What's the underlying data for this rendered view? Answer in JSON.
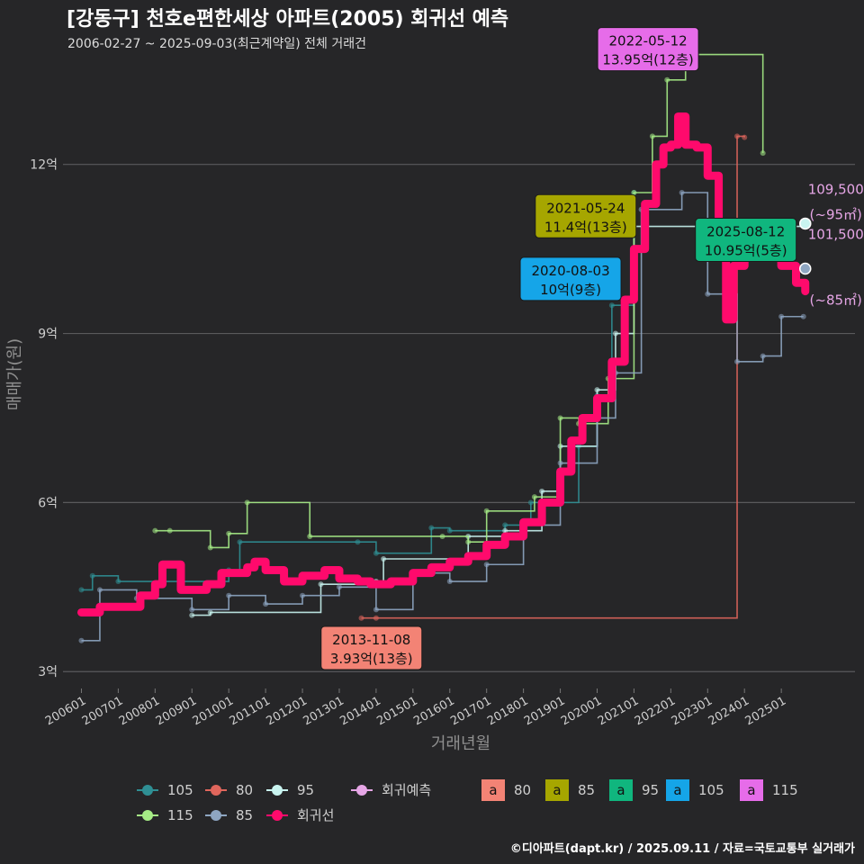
{
  "title": "[강동구] 천호e편한세상 아파트(2005) 회귀선 예측",
  "subtitle": "2006-02-27 ~ 2025-09-03(최근계약일) 전체 거래건",
  "footer": "©디아파트(dapt.kr) / 2025.09.11 / 자료=국토교통부 실거래가",
  "colors": {
    "background": "#262628",
    "regression": "#ff0a6c",
    "s105": "#2f8f94",
    "s80": "#e0665c",
    "s95": "#c9f4f0",
    "s115": "#a6ec86",
    "s85": "#8ea6c2",
    "pred": "#e6a6e6"
  },
  "chart_data": {
    "type": "line",
    "title": "[강동구] 천호e편한세상 아파트(2005) 회귀선 예측",
    "xlabel": "거래년월",
    "ylabel": "매매가(원)",
    "xlim": [
      2005.5,
      2027.0
    ],
    "ylim": [
      2.7,
      13.8
    ],
    "x_ticks": [
      {
        "x": 2006.0,
        "label": "200601"
      },
      {
        "x": 2007.0,
        "label": "200701"
      },
      {
        "x": 2008.0,
        "label": "200801"
      },
      {
        "x": 2009.0,
        "label": "200901"
      },
      {
        "x": 2010.0,
        "label": "201001"
      },
      {
        "x": 2011.0,
        "label": "201101"
      },
      {
        "x": 2012.0,
        "label": "201201"
      },
      {
        "x": 2013.0,
        "label": "201301"
      },
      {
        "x": 2014.0,
        "label": "201401"
      },
      {
        "x": 2015.0,
        "label": "201501"
      },
      {
        "x": 2016.0,
        "label": "201601"
      },
      {
        "x": 2017.0,
        "label": "201701"
      },
      {
        "x": 2018.0,
        "label": "201801"
      },
      {
        "x": 2019.0,
        "label": "201901"
      },
      {
        "x": 2020.0,
        "label": "202001"
      },
      {
        "x": 2021.0,
        "label": "202101"
      },
      {
        "x": 2022.0,
        "label": "202201"
      },
      {
        "x": 2023.0,
        "label": "202301"
      },
      {
        "x": 2024.0,
        "label": "202401"
      },
      {
        "x": 2025.0,
        "label": "202501"
      }
    ],
    "y_ticks": [
      {
        "y": 3,
        "label": "3억"
      },
      {
        "y": 6,
        "label": "6억"
      },
      {
        "y": 9,
        "label": "9억"
      },
      {
        "y": 12,
        "label": "12억"
      }
    ],
    "series": [
      {
        "name": "105",
        "color": "#2f8f94",
        "values": [
          [
            2006.0,
            4.45
          ],
          [
            2006.3,
            4.7
          ],
          [
            2007.0,
            4.6
          ],
          [
            2010.0,
            4.8
          ],
          [
            2010.3,
            5.3
          ],
          [
            2013.5,
            5.3
          ],
          [
            2014.0,
            5.1
          ],
          [
            2015.5,
            5.55
          ],
          [
            2016.0,
            5.5
          ],
          [
            2017.5,
            5.6
          ],
          [
            2018.2,
            6.0
          ],
          [
            2019.5,
            7.0
          ],
          [
            2020.0,
            7.9
          ],
          [
            2020.4,
            9.5
          ],
          [
            2021.0,
            11.5
          ]
        ]
      },
      {
        "name": "80",
        "color": "#e0665c",
        "values": [
          [
            2013.6,
            3.95
          ],
          [
            2014.0,
            3.95
          ],
          [
            2023.8,
            12.5
          ],
          [
            2024.0,
            12.48
          ]
        ]
      },
      {
        "name": "95",
        "color": "#c9f4f0",
        "values": [
          [
            2009.0,
            4.0
          ],
          [
            2009.5,
            4.05
          ],
          [
            2012.5,
            4.55
          ],
          [
            2014.0,
            4.6
          ],
          [
            2014.2,
            5.0
          ],
          [
            2016.5,
            5.4
          ],
          [
            2017.5,
            5.5
          ],
          [
            2018.5,
            6.2
          ],
          [
            2019.0,
            7.0
          ],
          [
            2020.0,
            8.0
          ],
          [
            2020.5,
            9.0
          ],
          [
            2021.0,
            10.9
          ],
          [
            2025.6,
            10.95
          ]
        ]
      },
      {
        "name": "115",
        "color": "#a6ec86",
        "values": [
          [
            2008.0,
            5.5
          ],
          [
            2008.4,
            5.5
          ],
          [
            2009.5,
            5.2
          ],
          [
            2010.0,
            5.45
          ],
          [
            2010.5,
            6.0
          ],
          [
            2012.2,
            5.4
          ],
          [
            2015.8,
            5.4
          ],
          [
            2016.5,
            5.3
          ],
          [
            2017.0,
            5.85
          ],
          [
            2018.3,
            6.1
          ],
          [
            2019.0,
            7.5
          ],
          [
            2019.5,
            7.4
          ],
          [
            2020.3,
            8.2
          ],
          [
            2021.0,
            11.5
          ],
          [
            2021.5,
            12.5
          ],
          [
            2021.9,
            13.5
          ],
          [
            2022.4,
            13.95
          ],
          [
            2024.5,
            12.2
          ]
        ]
      },
      {
        "name": "85",
        "color": "#8ea6c2",
        "values": [
          [
            2006.0,
            3.55
          ],
          [
            2006.5,
            4.45
          ],
          [
            2007.5,
            4.3
          ],
          [
            2009.0,
            4.1
          ],
          [
            2010.0,
            4.35
          ],
          [
            2011.0,
            4.2
          ],
          [
            2012.0,
            4.35
          ],
          [
            2013.0,
            4.5
          ],
          [
            2014.0,
            4.1
          ],
          [
            2015.0,
            4.75
          ],
          [
            2016.0,
            4.6
          ],
          [
            2017.0,
            4.9
          ],
          [
            2018.0,
            5.6
          ],
          [
            2019.0,
            6.7
          ],
          [
            2020.0,
            7.5
          ],
          [
            2020.5,
            8.3
          ],
          [
            2021.2,
            11.2
          ],
          [
            2022.3,
            11.5
          ],
          [
            2023.0,
            9.7
          ],
          [
            2023.8,
            8.5
          ],
          [
            2024.5,
            8.6
          ],
          [
            2025.0,
            9.3
          ],
          [
            2025.6,
            9.3
          ]
        ]
      }
    ],
    "regression": {
      "name": "회귀선",
      "color": "#ff0a6c",
      "values": [
        [
          2006.0,
          4.05
        ],
        [
          2006.5,
          4.15
        ],
        [
          2007.0,
          4.15
        ],
        [
          2007.6,
          4.35
        ],
        [
          2008.0,
          4.55
        ],
        [
          2008.2,
          4.9
        ],
        [
          2008.5,
          4.9
        ],
        [
          2008.7,
          4.45
        ],
        [
          2009.0,
          4.45
        ],
        [
          2009.4,
          4.55
        ],
        [
          2009.8,
          4.75
        ],
        [
          2010.5,
          4.85
        ],
        [
          2010.7,
          4.95
        ],
        [
          2011.0,
          4.8
        ],
        [
          2011.5,
          4.6
        ],
        [
          2012.0,
          4.7
        ],
        [
          2012.6,
          4.8
        ],
        [
          2013.0,
          4.65
        ],
        [
          2013.5,
          4.6
        ],
        [
          2013.85,
          4.55
        ],
        [
          2014.4,
          4.6
        ],
        [
          2015.0,
          4.75
        ],
        [
          2015.5,
          4.85
        ],
        [
          2016.0,
          4.95
        ],
        [
          2016.5,
          5.05
        ],
        [
          2017.0,
          5.25
        ],
        [
          2017.5,
          5.4
        ],
        [
          2018.0,
          5.65
        ],
        [
          2018.5,
          6.0
        ],
        [
          2019.0,
          6.55
        ],
        [
          2019.3,
          7.1
        ],
        [
          2019.6,
          7.5
        ],
        [
          2020.0,
          7.85
        ],
        [
          2020.4,
          8.5
        ],
        [
          2020.75,
          9.6
        ],
        [
          2021.0,
          10.5
        ],
        [
          2021.3,
          11.3
        ],
        [
          2021.6,
          12.0
        ],
        [
          2021.8,
          12.3
        ],
        [
          2022.0,
          12.35
        ],
        [
          2022.2,
          12.85
        ],
        [
          2022.4,
          12.35
        ],
        [
          2022.7,
          12.3
        ],
        [
          2023.0,
          11.8
        ],
        [
          2023.3,
          10.6
        ],
        [
          2023.5,
          9.25
        ],
        [
          2023.7,
          10.2
        ],
        [
          2024.0,
          10.6
        ],
        [
          2024.5,
          10.55
        ],
        [
          2025.0,
          10.2
        ],
        [
          2025.4,
          9.9
        ],
        [
          2025.65,
          9.75
        ]
      ]
    },
    "predictions": [
      {
        "label": "109,500",
        "sub": "(~95㎡)",
        "x": 2025.65,
        "y": 10.95,
        "color": "#c9f4f0"
      },
      {
        "label": "101,500",
        "sub": "(~85㎡)",
        "x": 2025.65,
        "y": 10.15,
        "color": "#8ea6c2"
      }
    ],
    "annotations": [
      {
        "date": "2013-11-08",
        "text": "3.93억(13층)",
        "x": 2013.85,
        "y": 3.93,
        "color": "#f38375"
      },
      {
        "date": "2020-08-03",
        "text": "10억(9층)",
        "x": 2020.6,
        "y": 10.0,
        "color": "#15a5e8"
      },
      {
        "date": "2021-05-24",
        "text": "11.4억(13층)",
        "x": 2021.4,
        "y": 11.4,
        "color": "#a6a600"
      },
      {
        "date": "2022-05-12",
        "text": "13.95억(12층)",
        "x": 2022.36,
        "y": 13.95,
        "color": "#e66ce9"
      },
      {
        "date": "2025-08-12",
        "text": "10.95억(5층)",
        "x": 2025.6,
        "y": 10.95,
        "color": "#10b67e"
      }
    ],
    "legend": {
      "placement": "bottom",
      "line_items": [
        {
          "label": "105",
          "color": "#2f8f94"
        },
        {
          "label": "80",
          "color": "#e0665c"
        },
        {
          "label": "95",
          "color": "#c9f4f0"
        },
        {
          "label": "회귀예측",
          "color": "#e6a6e6"
        },
        {
          "label": "115",
          "color": "#a6ec86"
        },
        {
          "label": "85",
          "color": "#8ea6c2"
        },
        {
          "label": "회귀선",
          "color": "#ff0a6c"
        }
      ],
      "box_items": [
        {
          "label": "80",
          "color": "#f38375",
          "glyph": "a"
        },
        {
          "label": "85",
          "color": "#a6a600",
          "glyph": "a"
        },
        {
          "label": "95",
          "color": "#10b67e",
          "glyph": "a"
        },
        {
          "label": "105",
          "color": "#15a5e8",
          "glyph": "a"
        },
        {
          "label": "115",
          "color": "#e66ce9",
          "glyph": "a"
        }
      ]
    }
  }
}
